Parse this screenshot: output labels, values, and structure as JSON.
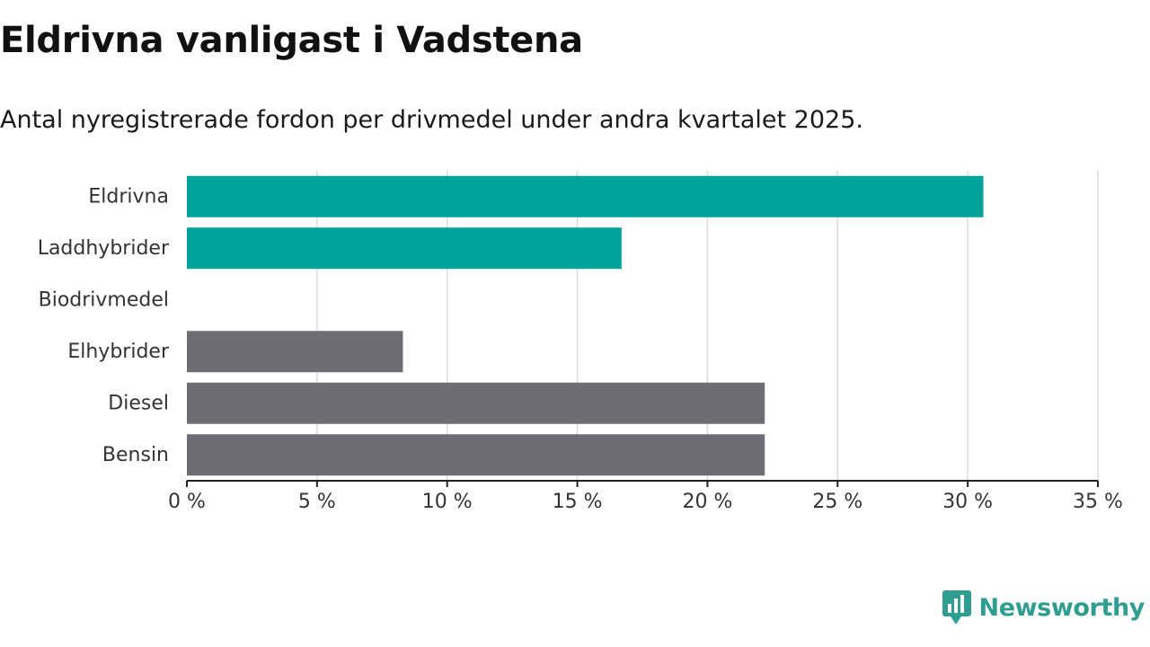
{
  "title": "Eldrivna vanligast i Vadstena",
  "subtitle": "Antal nyregistrerade fordon per drivmedel under andra kvartalet 2025.",
  "brand": {
    "name": "Newsworthy",
    "icon": "newsworthy-logo-icon",
    "color": "#2f9e91"
  },
  "chart_data": {
    "type": "bar",
    "orientation": "horizontal",
    "categories": [
      "Eldrivna",
      "Laddhybrider",
      "Biodrivmedel",
      "Elhybrider",
      "Diesel",
      "Bensin"
    ],
    "values": [
      30.6,
      16.7,
      0,
      8.3,
      22.2,
      22.2
    ],
    "colors": [
      "#00a39a",
      "#00a39a",
      "#00a39a",
      "#6e6d74",
      "#6e6d74",
      "#6e6d74"
    ],
    "xlim": [
      0,
      35
    ],
    "xticks": [
      0,
      5,
      10,
      15,
      20,
      25,
      30,
      35
    ],
    "xtick_labels": [
      "0 %",
      "5 %",
      "10 %",
      "15 %",
      "20 %",
      "25 %",
      "30 %",
      "35 %"
    ],
    "xlabel": "",
    "ylabel": "",
    "grid": "vertical",
    "legend": "none"
  }
}
